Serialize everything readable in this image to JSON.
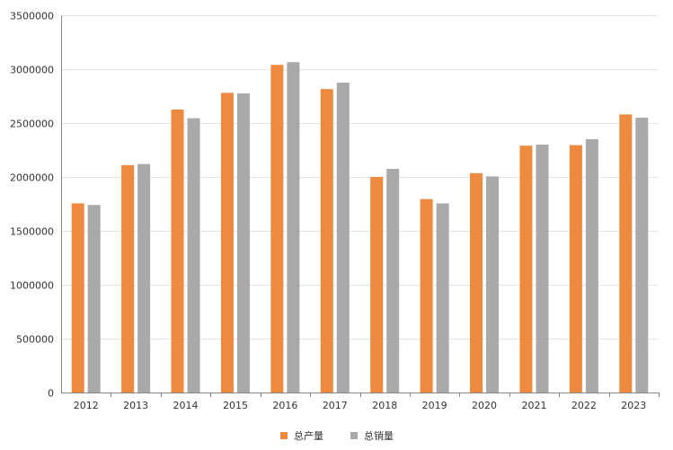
{
  "chart_data": {
    "type": "bar",
    "title": "",
    "xlabel": "",
    "ylabel": "",
    "categories": [
      "2012",
      "2013",
      "2014",
      "2015",
      "2016",
      "2017",
      "2018",
      "2019",
      "2020",
      "2021",
      "2022",
      "2023"
    ],
    "ylim": [
      0,
      3500000
    ],
    "yticks": [
      0,
      500000,
      1000000,
      1500000,
      2000000,
      2500000,
      3000000,
      3500000
    ],
    "grid": true,
    "legend_position": "bottom-center",
    "series": [
      {
        "name": "总产量",
        "color": "#ed8a3f",
        "values": [
          1755000,
          2110000,
          2625000,
          2780000,
          3040000,
          2815000,
          2000000,
          1795000,
          2035000,
          2290000,
          2295000,
          2580000
        ]
      },
      {
        "name": "总销量",
        "color": "#a9a9a9",
        "values": [
          1740000,
          2120000,
          2545000,
          2775000,
          3065000,
          2875000,
          2075000,
          1755000,
          2005000,
          2300000,
          2350000,
          2550000
        ]
      }
    ]
  }
}
